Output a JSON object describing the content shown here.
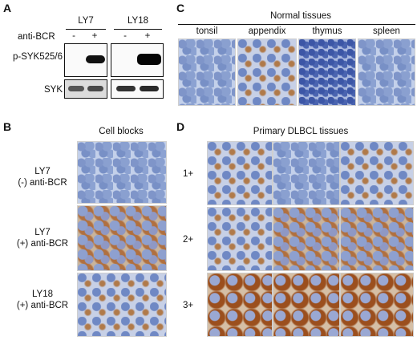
{
  "panel_a": {
    "label": "A",
    "groups": [
      "LY7",
      "LY18"
    ],
    "signs": [
      "-",
      "+",
      "-",
      "+"
    ],
    "treatment": "anti-BCR",
    "rows": [
      "p-SYK525/6",
      "SYK"
    ]
  },
  "panel_b": {
    "label": "B",
    "title": "Cell blocks",
    "rows": [
      {
        "line1": "LY7",
        "line2": "(-) anti-BCR"
      },
      {
        "line1": "LY7",
        "line2": "(+) anti-BCR"
      },
      {
        "line1": "LY18",
        "line2": "(+) anti-BCR"
      }
    ]
  },
  "panel_c": {
    "label": "C",
    "title": "Normal tissues",
    "tissues": [
      "tonsil",
      "appendix",
      "thymus",
      "spleen"
    ]
  },
  "panel_d": {
    "label": "D",
    "title": "Primary DLBCL tissues",
    "scores": [
      "1+",
      "2+",
      "3+"
    ]
  }
}
